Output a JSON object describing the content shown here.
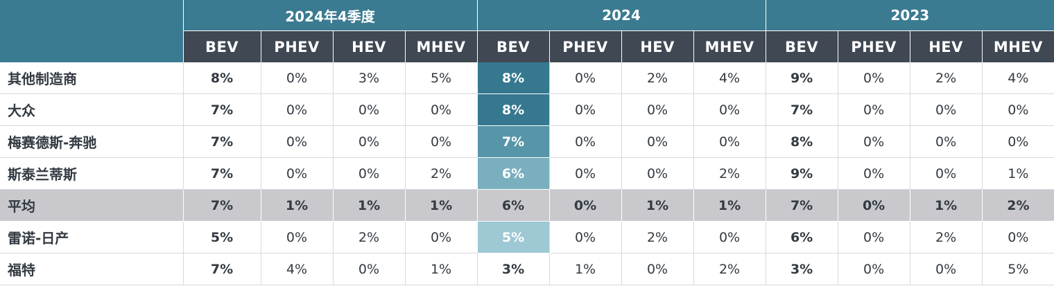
{
  "chart_data": {
    "type": "table",
    "groups": [
      "2024年4季度",
      "2024",
      "2023"
    ],
    "subheaders": [
      "BEV",
      "PHEV",
      "HEV",
      "MHEV"
    ],
    "rows": [
      {
        "label": "其他制造商",
        "cells": [
          "8%",
          "0%",
          "3%",
          "5%",
          "8%",
          "0%",
          "2%",
          "4%",
          "9%",
          "0%",
          "2%",
          "4%"
        ],
        "heat": "#357890"
      },
      {
        "label": "大众",
        "cells": [
          "7%",
          "0%",
          "0%",
          "0%",
          "8%",
          "0%",
          "0%",
          "0%",
          "7%",
          "0%",
          "0%",
          "0%"
        ],
        "heat": "#357890"
      },
      {
        "label": "梅赛德斯-奔驰",
        "cells": [
          "7%",
          "0%",
          "0%",
          "0%",
          "7%",
          "0%",
          "0%",
          "0%",
          "8%",
          "0%",
          "0%",
          "0%"
        ],
        "heat": "#5795a8"
      },
      {
        "label": "斯泰兰蒂斯",
        "cells": [
          "7%",
          "0%",
          "0%",
          "2%",
          "6%",
          "0%",
          "0%",
          "2%",
          "9%",
          "0%",
          "0%",
          "1%"
        ],
        "heat": "#79afbf"
      },
      {
        "label": "平均",
        "cells": [
          "7%",
          "1%",
          "1%",
          "1%",
          "6%",
          "0%",
          "1%",
          "1%",
          "7%",
          "0%",
          "1%",
          "2%"
        ],
        "average": true
      },
      {
        "label": "雷诺-日产",
        "cells": [
          "5%",
          "0%",
          "2%",
          "0%",
          "5%",
          "0%",
          "2%",
          "0%",
          "6%",
          "0%",
          "2%",
          "0%"
        ],
        "heat": "#9ec8d3"
      },
      {
        "label": "福特",
        "cells": [
          "7%",
          "4%",
          "0%",
          "1%",
          "3%",
          "1%",
          "0%",
          "2%",
          "3%",
          "0%",
          "0%",
          "5%"
        ],
        "heat": "#ffffff"
      }
    ],
    "colors": {
      "header_group": "#3b7b91",
      "header_sub": "#3f4853",
      "average_row": "#c9c9cd",
      "text": "#333a42"
    }
  }
}
